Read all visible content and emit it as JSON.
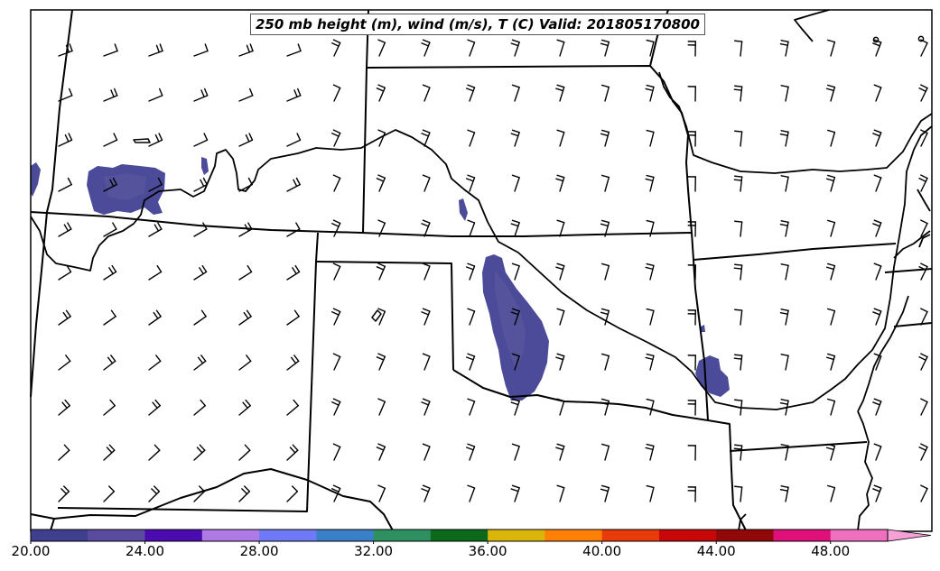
{
  "title": "250 mb height (m), wind (m/s), T (C) Valid: 201805170800",
  "colorbar": {
    "colors": [
      "#3f3f8f",
      "#5a4ba0",
      "#4b0bb0",
      "#b07ae6",
      "#6f7af7",
      "#3a80c8",
      "#2e9060",
      "#0a6a1a",
      "#dbb60a",
      "#ff8005",
      "#e83a0a",
      "#c80808",
      "#900808",
      "#e0107a",
      "#f070c0",
      "#f6a0d8"
    ],
    "ticks": [
      "20.00",
      "24.00",
      "28.00",
      "32.00",
      "36.00",
      "40.00",
      "44.00",
      "48.00"
    ],
    "extend": "max"
  },
  "map": {
    "region": "Central / Southern Plains, United States",
    "features": [
      "state-borders",
      "rivers",
      "wind-barbs",
      "temperature-shading"
    ],
    "shaded_temperature_fill": "#4b4b99"
  }
}
